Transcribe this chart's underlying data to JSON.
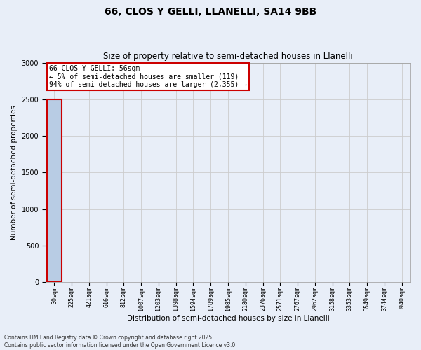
{
  "title": "66, CLOS Y GELLI, LLANELLI, SA14 9BB",
  "subtitle": "Size of property relative to semi-detached houses in Llanelli",
  "xlabel": "Distribution of semi-detached houses by size in Llanelli",
  "ylabel": "Number of semi-detached properties",
  "categories": [
    "30sqm",
    "225sqm",
    "421sqm",
    "616sqm",
    "812sqm",
    "1007sqm",
    "1203sqm",
    "1398sqm",
    "1594sqm",
    "1789sqm",
    "1985sqm",
    "2180sqm",
    "2376sqm",
    "2571sqm",
    "2767sqm",
    "2962sqm",
    "3158sqm",
    "3353sqm",
    "3549sqm",
    "3744sqm",
    "3940sqm"
  ],
  "values": [
    2500,
    5,
    0,
    0,
    0,
    0,
    0,
    0,
    0,
    0,
    0,
    0,
    0,
    0,
    0,
    0,
    0,
    0,
    0,
    0,
    0
  ],
  "bar_color": "#b8cce4",
  "bar_edge_color": "#4472c4",
  "highlight_bar_index": 0,
  "highlight_edge_color": "#cc0000",
  "annotation_text": "66 CLOS Y GELLI: 56sqm\n← 5% of semi-detached houses are smaller (119)\n94% of semi-detached houses are larger (2,355) →",
  "annotation_box_color": "#ffffff",
  "annotation_box_edge_color": "#cc0000",
  "ylim": [
    0,
    3000
  ],
  "yticks": [
    0,
    500,
    1000,
    1500,
    2000,
    2500,
    3000
  ],
  "grid_color": "#cccccc",
  "background_color": "#e8eef8",
  "footnote": "Contains HM Land Registry data © Crown copyright and database right 2025.\nContains public sector information licensed under the Open Government Licence v3.0.",
  "title_fontsize": 10,
  "subtitle_fontsize": 8.5,
  "tick_fontsize": 6,
  "ylabel_fontsize": 7.5,
  "xlabel_fontsize": 7.5,
  "annotation_fontsize": 7,
  "footnote_fontsize": 5.5
}
